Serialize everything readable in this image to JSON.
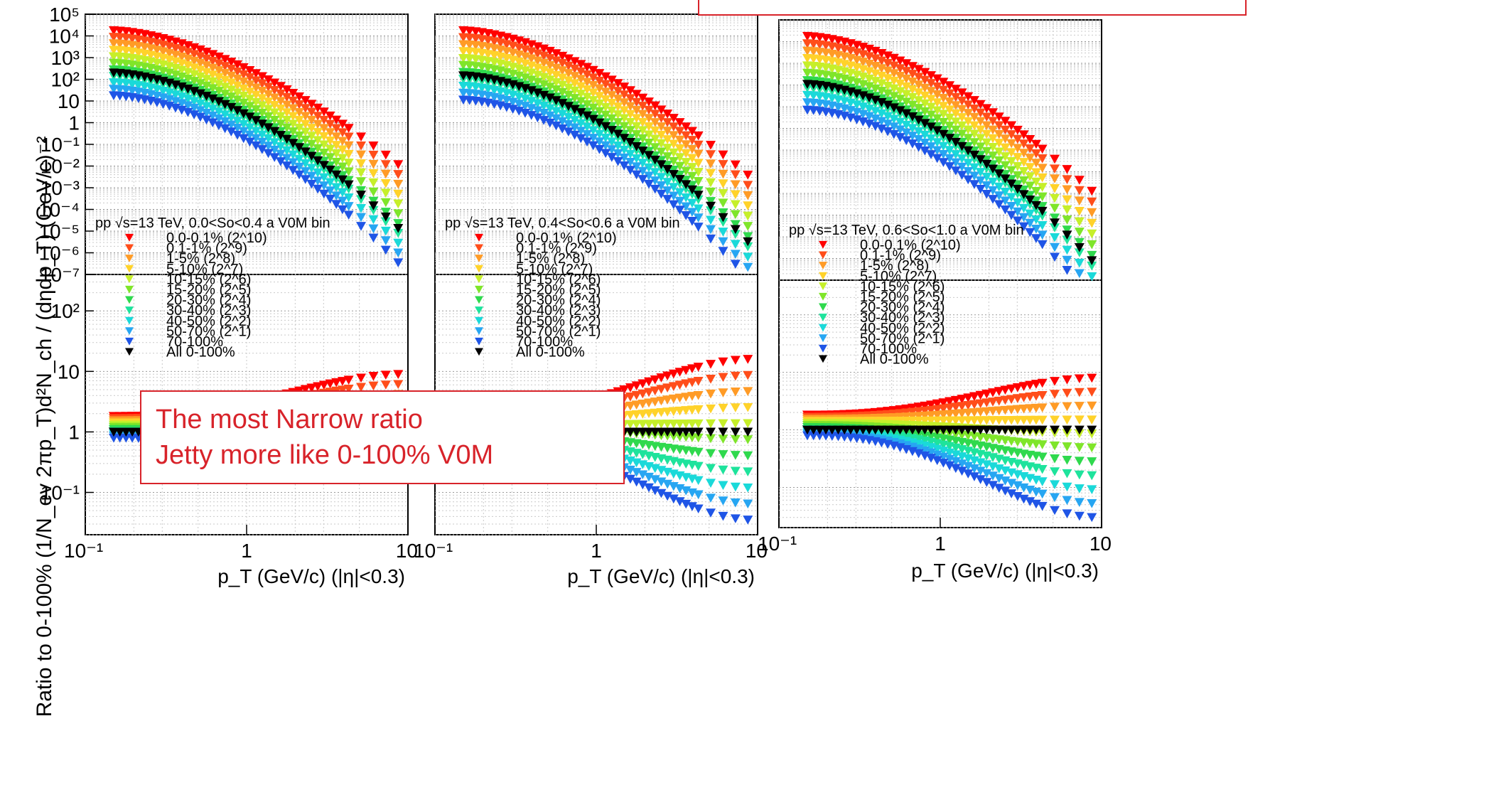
{
  "figure": {
    "ylabel": "Ratio to 0-100%  (1/N_ev 2πp_T)d²N_ch / (dηdp_T) (GeV/c)⁻²",
    "annotation": {
      "lines": [
        "The most Narrow ratio",
        "Jetty more like 0-100% V0M"
      ]
    }
  },
  "chart_data": [
    {
      "type": "scatter",
      "panel": "left",
      "legend_header": "pp √s=13 TeV, 0.0<So<0.4 a V0M bin",
      "xlabel": "p_T (GeV/c) (|η|<0.3)",
      "x_scale": "log",
      "xlim": [
        0.1,
        10
      ],
      "x_ticks": [
        "10⁻¹",
        "1",
        "10"
      ],
      "top": {
        "y_scale": "log",
        "ylim": [
          1e-07,
          100000.0
        ],
        "y_ticks": [
          "10⁵",
          "10⁴",
          "10³",
          "10²",
          "10",
          "1",
          "10⁻¹",
          "10⁻²",
          "10⁻³",
          "10⁻⁴",
          "10⁻⁵",
          "10⁻⁶",
          "10⁻⁷"
        ],
        "high_pt_decades": 6.0,
        "spread_decades": 3.0
      },
      "bottom": {
        "y_scale": "log",
        "ylim": [
          0.02,
          400
        ],
        "y_ticks": [
          "10²",
          "10",
          "1",
          "10⁻¹"
        ],
        "ratio_high_end": 9,
        "ratio_low_end": 0.2
      }
    },
    {
      "type": "scatter",
      "panel": "middle",
      "legend_header": "pp √s=13 TeV, 0.4<So<0.6 a V0M bin",
      "xlabel": "p_T (GeV/c) (|η|<0.3)",
      "x_scale": "log",
      "xlim": [
        0.1,
        10
      ],
      "x_ticks": [
        "10⁻¹",
        "1",
        "10"
      ],
      "top": {
        "y_scale": "log",
        "ylim": [
          1e-07,
          100000.0
        ],
        "high_pt_decades": 6.5,
        "spread_decades": 3.2
      },
      "bottom": {
        "y_scale": "log",
        "ylim": [
          0.02,
          400
        ],
        "ratio_high_end": 16,
        "ratio_low_end": 0.035
      }
    },
    {
      "type": "scatter",
      "panel": "right",
      "legend_header": "pp √s=13 TeV, 0.6<So<1.0 a V0M bin",
      "xlabel": "p_T (GeV/c) (|η|<0.3)",
      "x_scale": "log",
      "xlim": [
        0.1,
        10
      ],
      "x_ticks": [
        "10⁻¹",
        "1",
        "10"
      ],
      "top": {
        "y_scale": "log",
        "ylim": [
          1e-07,
          100000.0
        ],
        "high_pt_decades": 7.0,
        "spread_decades": 3.4
      },
      "bottom": {
        "y_scale": "log",
        "ylim": [
          0.02,
          400
        ],
        "ratio_high_end": 8,
        "ratio_low_end": 0.03
      }
    }
  ],
  "legend": {
    "series": [
      {
        "name": "0.0-0.1% (2^10)",
        "color": "#ff0000"
      },
      {
        "name": "0.1-1% (2^9)",
        "color": "#ff4d1a"
      },
      {
        "name": "1-5% (2^8)",
        "color": "#ff9b26"
      },
      {
        "name": "5-10% (2^7)",
        "color": "#ffd22a"
      },
      {
        "name": "10-15% (2^6)",
        "color": "#c6ef2a"
      },
      {
        "name": "15-20% (2^5)",
        "color": "#7fe52a"
      },
      {
        "name": "20-30% (2^4)",
        "color": "#2fd94d"
      },
      {
        "name": "30-40% (2^3)",
        "color": "#1ee39c"
      },
      {
        "name": "40-50% (2^2)",
        "color": "#1ad9d9"
      },
      {
        "name": "50-70% (2^1)",
        "color": "#27a6f2"
      },
      {
        "name": "70-100%",
        "color": "#1f55e6"
      },
      {
        "name": "All 0-100%",
        "color": "#000000"
      }
    ]
  }
}
